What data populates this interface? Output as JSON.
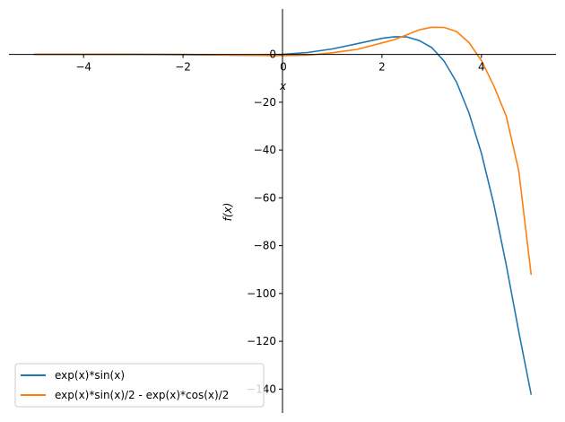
{
  "chart_data": {
    "type": "line",
    "title": "",
    "xlabel": "x",
    "ylabel": "f(x)",
    "xlim": [
      -5.5,
      5.5
    ],
    "ylim": [
      -150,
      19
    ],
    "xticks": [
      -4,
      -2,
      0,
      2,
      4
    ],
    "xtick_labels": [
      "−4",
      "−2",
      "0",
      "2",
      "4"
    ],
    "yticks": [
      0,
      -20,
      -40,
      -60,
      -80,
      -100,
      -120,
      -140
    ],
    "ytick_labels": [
      "0",
      "−20",
      "−40",
      "−60",
      "−80",
      "−100",
      "−120",
      "−140"
    ],
    "axes_style": "spines through origin",
    "grid": false,
    "legend_position": "bottom-left",
    "series": [
      {
        "name": "exp(x)*sin(x)",
        "color": "#1f77b4",
        "x": [
          -5,
          -4.5,
          -4,
          -3.5,
          -3,
          -2.5,
          -2,
          -1.5,
          -1,
          -0.5,
          0,
          0.5,
          1,
          1.5,
          2,
          2.25,
          2.5,
          2.75,
          3,
          3.25,
          3.5,
          3.75,
          4,
          4.25,
          4.5,
          4.75,
          5
        ],
        "y": [
          0.0065,
          0.0108,
          0.0139,
          0.0106,
          -0.007,
          -0.0491,
          -0.1231,
          -0.2226,
          -0.3096,
          -0.2908,
          0,
          0.7904,
          2.2874,
          4.4705,
          6.7188,
          7.3812,
          7.318,
          5.7736,
          2.8347,
          -2.8262,
          -11.6224,
          -24.582,
          -41.32,
          -62.79,
          -88.06,
          -115.9,
          -142.35
        ]
      },
      {
        "name": "exp(x)*sin(x)/2 - exp(x)*cos(x)/2",
        "color": "#ff7f0e",
        "x": [
          -5,
          -4.5,
          -4,
          -3.5,
          -3,
          -2.5,
          -2,
          -1.5,
          -1,
          -0.5,
          0,
          0.5,
          1,
          1.5,
          2,
          2.25,
          2.5,
          2.75,
          3,
          3.25,
          3.5,
          3.75,
          4,
          4.25,
          4.5,
          4.75,
          5
        ],
        "y": [
          0.0013,
          0.0074,
          0.0129,
          0.0139,
          0.0212,
          0.0229,
          0.0055,
          -0.1185,
          -0.2541,
          -0.4115,
          -0.5,
          -0.328,
          0.686,
          2.117,
          4.798,
          6.2,
          8.22,
          10.3,
          11.36,
          11.3,
          9.58,
          4.93,
          -2.61,
          -13.19,
          -25.86,
          -48.6,
          -92.2
        ]
      }
    ]
  }
}
